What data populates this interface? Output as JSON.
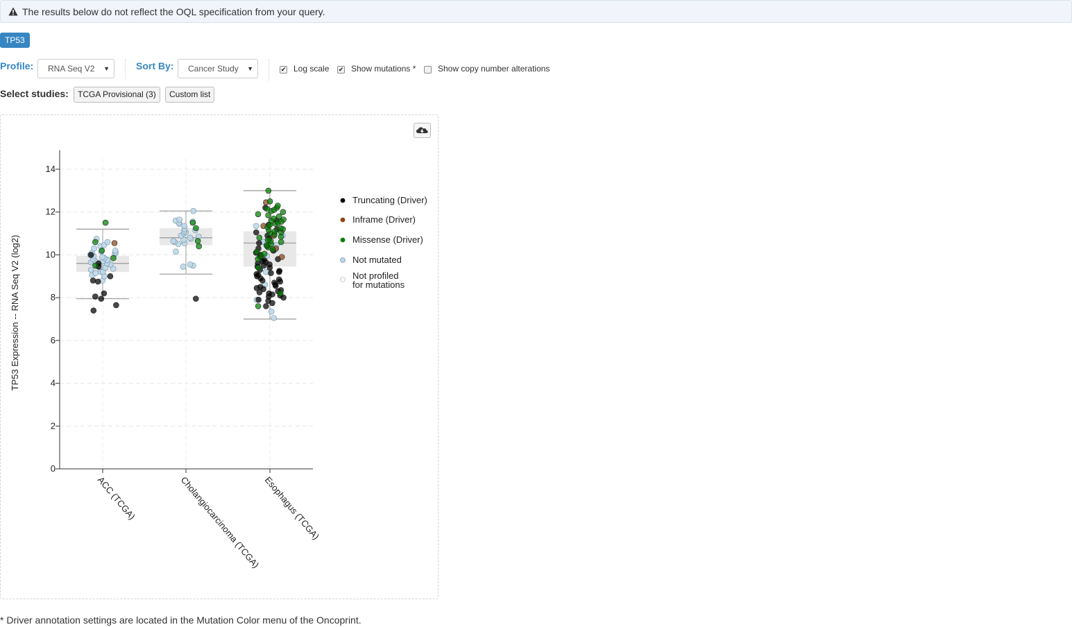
{
  "alert": {
    "text": "The results below do not reflect the OQL specification from your query.",
    "icon": "warning-icon"
  },
  "gene_tab": {
    "label": "TP53"
  },
  "controls": {
    "profile_label": "Profile:",
    "profile_value": "RNA Seq V2",
    "sortby_label": "Sort By:",
    "sortby_value": "Cancer Study",
    "log_scale": {
      "label": "Log scale",
      "checked": true
    },
    "show_mutations": {
      "label": "Show mutations *",
      "checked": true
    },
    "show_cna": {
      "label": "Show copy number alterations",
      "checked": false
    }
  },
  "studies": {
    "label": "Select studies:",
    "tcga_button": "TCGA Provisional (3)",
    "custom_button": "Custom list"
  },
  "download_icon": "cloud-download-icon",
  "footnote": "* Driver annotation settings are located in the Mutation Color menu of the Oncoprint.",
  "chart_data": {
    "type": "box-scatter",
    "ylabel": "TP53 Expression -- RNA Seq V2 (log2)",
    "ylim": [
      0,
      14.5
    ],
    "yticks": [
      0,
      2,
      4,
      6,
      8,
      10,
      12,
      14
    ],
    "grid": true,
    "legend_position": "right",
    "categories": [
      "ACC (TCGA)",
      "Cholangiocarcinoma (TCGA)",
      "Esophagus (TCGA)"
    ],
    "legend": [
      {
        "key": "trunc",
        "label": "Truncating (Driver)",
        "color": "#000000"
      },
      {
        "key": "inframe",
        "label": "Inframe (Driver)",
        "color": "#8b4513"
      },
      {
        "key": "missense",
        "label": "Missense (Driver)",
        "color": "#008000"
      },
      {
        "key": "notmut",
        "label": "Not mutated",
        "color": "#bfd8e8"
      },
      {
        "key": "notprof",
        "label": "Not profiled\nfor mutations",
        "color": "#ffffff"
      }
    ],
    "boxes": [
      {
        "category": "ACC (TCGA)",
        "min": 7.95,
        "q1": 9.2,
        "median": 9.6,
        "q3": 9.95,
        "max": 11.2
      },
      {
        "category": "Cholangiocarcinoma (TCGA)",
        "min": 9.1,
        "q1": 10.45,
        "median": 10.8,
        "q3": 11.25,
        "max": 12.05
      },
      {
        "category": "Esophagus (TCGA)",
        "min": 7.0,
        "q1": 9.45,
        "median": 10.55,
        "q3": 11.1,
        "max": 13.0
      }
    ],
    "points": [
      {
        "category": "ACC (TCGA)",
        "trunc": [
          7.4,
          7.65,
          7.95,
          8.05,
          8.2,
          8.75,
          8.8,
          9.0,
          9.45,
          9.6,
          10.0
        ],
        "inframe": [
          10.55
        ],
        "missense": [
          9.5,
          9.85,
          10.2,
          10.6,
          11.5
        ],
        "notmut": [
          8.8,
          9.0,
          9.05,
          9.15,
          9.2,
          9.2,
          9.3,
          9.35,
          9.4,
          9.45,
          9.5,
          9.55,
          9.6,
          9.65,
          9.7,
          9.7,
          9.75,
          9.8,
          9.85,
          9.9,
          9.95,
          10.0,
          10.05,
          10.1,
          10.1,
          10.15,
          10.2,
          10.3,
          10.4,
          10.45,
          10.6,
          10.75
        ]
      },
      {
        "category": "Cholangiocarcinoma (TCGA)",
        "trunc": [
          7.95
        ],
        "inframe": [],
        "missense": [
          10.4,
          10.65,
          11.25,
          11.5
        ],
        "notmut": [
          9.45,
          9.5,
          9.55,
          10.15,
          10.5,
          10.55,
          10.6,
          10.65,
          10.7,
          10.75,
          10.8,
          10.85,
          10.9,
          11.0,
          11.05,
          11.1,
          11.15,
          11.2,
          11.35,
          11.45,
          11.5,
          11.55,
          11.6,
          11.65,
          12.05
        ]
      },
      {
        "category": "Esophagus (TCGA)",
        "trunc": [
          7.6,
          7.75,
          7.85,
          7.9,
          8.0,
          8.05,
          8.1,
          8.15,
          8.2,
          8.25,
          8.3,
          8.35,
          8.4,
          8.45,
          8.5,
          8.55,
          8.6,
          8.7,
          8.75,
          8.8,
          8.85,
          8.9,
          9.0,
          9.05,
          9.1,
          9.15,
          9.2,
          9.25,
          9.3,
          9.4,
          9.45,
          9.5,
          9.55,
          9.6,
          9.65,
          9.7,
          9.75,
          9.8,
          9.9,
          10.0,
          10.1,
          10.2,
          10.3,
          10.4,
          10.55,
          10.75,
          10.9,
          11.05,
          11.2,
          11.4,
          11.6,
          12.2
        ],
        "inframe": [
          9.9,
          10.3,
          10.9,
          11.35,
          12.45
        ],
        "missense": [
          7.6,
          8.2,
          9.4,
          9.8,
          9.95,
          10.05,
          10.15,
          10.25,
          10.35,
          10.45,
          10.5,
          10.6,
          10.65,
          10.7,
          10.8,
          10.85,
          10.95,
          11.0,
          11.05,
          11.1,
          11.15,
          11.2,
          11.25,
          11.3,
          11.4,
          11.45,
          11.5,
          11.55,
          11.6,
          11.65,
          11.7,
          11.8,
          11.85,
          11.9,
          12.0,
          12.05,
          12.1,
          12.15,
          12.2,
          12.3,
          12.5,
          13.0
        ],
        "notmut": [
          7.05,
          7.35,
          7.9,
          8.6,
          9.2,
          9.7,
          9.95,
          10.25,
          10.45,
          10.6,
          10.9,
          11.35
        ]
      }
    ]
  }
}
